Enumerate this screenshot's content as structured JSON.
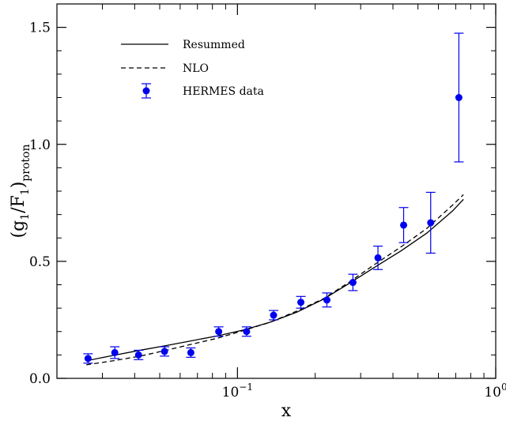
{
  "chart_data": {
    "type": "scatter",
    "xlabel": "x",
    "ylabel_main": "(g",
    "ylabel_sub1": "1",
    "ylabel_mid": "/F",
    "ylabel_sub2": "1",
    "ylabel_end": ")",
    "ylabel_sub3": "proton",
    "xscale": "log",
    "xlim": [
      0.02,
      1.0
    ],
    "ylim": [
      0.0,
      1.6
    ],
    "x_ticks": [
      {
        "value": 0.1,
        "base": "10",
        "exp": "−1"
      },
      {
        "value": 1.0,
        "base": "10",
        "exp": "0"
      }
    ],
    "y_ticks": [
      {
        "value": 0.0,
        "label": "0.0"
      },
      {
        "value": 0.5,
        "label": "0.5"
      },
      {
        "value": 1.0,
        "label": "1.0"
      },
      {
        "value": 1.5,
        "label": "1.5"
      }
    ],
    "legend": {
      "position": "top-left",
      "entries": [
        {
          "name": "Resummed",
          "style": "solid"
        },
        {
          "name": "NLO",
          "style": "dashed"
        },
        {
          "name": "HERMES data",
          "style": "marker"
        }
      ]
    },
    "colors": {
      "data": "#0000ee",
      "lines": "#000000"
    },
    "series": [
      {
        "name": "Resummed",
        "style": "solid",
        "x": [
          0.026,
          0.033,
          0.042,
          0.053,
          0.066,
          0.084,
          0.106,
          0.134,
          0.17,
          0.215,
          0.27,
          0.34,
          0.43,
          0.54,
          0.68,
          0.75
        ],
        "y": [
          0.075,
          0.098,
          0.12,
          0.14,
          0.16,
          0.182,
          0.207,
          0.24,
          0.283,
          0.338,
          0.405,
          0.475,
          0.545,
          0.62,
          0.715,
          0.765
        ]
      },
      {
        "name": "NLO",
        "style": "dashed",
        "x": [
          0.026,
          0.033,
          0.042,
          0.053,
          0.066,
          0.084,
          0.106,
          0.134,
          0.17,
          0.215,
          0.27,
          0.34,
          0.43,
          0.54,
          0.68,
          0.75
        ],
        "y": [
          0.058,
          0.075,
          0.095,
          0.12,
          0.145,
          0.172,
          0.205,
          0.24,
          0.288,
          0.34,
          0.41,
          0.487,
          0.562,
          0.64,
          0.74,
          0.785
        ]
      },
      {
        "name": "HERMES data",
        "style": "errorbar",
        "x": [
          0.0264,
          0.0335,
          0.0414,
          0.0522,
          0.066,
          0.0846,
          0.1085,
          0.138,
          0.176,
          0.222,
          0.28,
          0.35,
          0.44,
          0.56,
          0.72
        ],
        "y": [
          0.085,
          0.11,
          0.1,
          0.115,
          0.11,
          0.2,
          0.2,
          0.27,
          0.325,
          0.335,
          0.41,
          0.515,
          0.655,
          0.665,
          1.2
        ],
        "err": [
          0.02,
          0.025,
          0.02,
          0.02,
          0.02,
          0.02,
          0.02,
          0.02,
          0.025,
          0.03,
          0.035,
          0.05,
          0.075,
          0.13,
          0.275
        ]
      }
    ]
  }
}
